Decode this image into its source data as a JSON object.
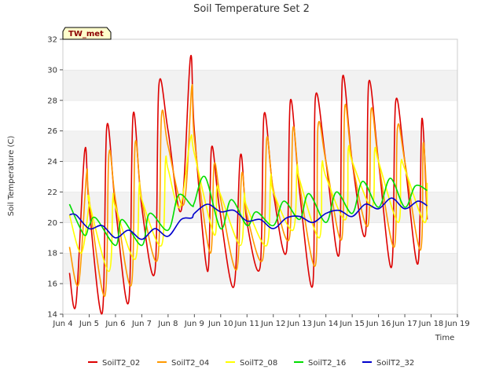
{
  "chart_data": {
    "type": "line",
    "title": "Soil Temperature Set 2",
    "xlabel": "Time",
    "ylabel": "Soil Temperature (C)",
    "badge": "TW_met",
    "x_ticks": [
      "Jun 4",
      "Jun 5",
      "Jun 6",
      "Jun 7",
      "Jun 8",
      "Jun 9",
      "Jun 10",
      "Jun 11",
      "Jun 12",
      "Jun 13",
      "Jun 14",
      "Jun 15",
      "Jun 16",
      "Jun 17",
      "Jun 18",
      "Jun 19"
    ],
    "xlim": [
      4,
      19
    ],
    "ylim": [
      14,
      32
    ],
    "y_ticks": [
      14,
      16,
      18,
      20,
      22,
      24,
      26,
      28,
      30,
      32
    ],
    "grid": "horizontal bands",
    "legend_position": "bottom",
    "series": [
      {
        "name": "SoilT2_02",
        "color": "#dd0000",
        "x": [
          4.25,
          4.5,
          4.83,
          5.0,
          5.5,
          5.67,
          6.0,
          6.5,
          6.67,
          7.0,
          7.5,
          7.65,
          8.0,
          8.5,
          8.85,
          9.0,
          9.5,
          9.65,
          9.95,
          10.5,
          10.75,
          11.0,
          11.5,
          11.65,
          12.0,
          12.5,
          12.65,
          13.0,
          13.5,
          13.6,
          14.0,
          14.5,
          14.63,
          15.0,
          15.5,
          15.63,
          16.0,
          16.5,
          16.65,
          17.0,
          17.5,
          17.65,
          17.85
        ],
        "y": [
          16.7,
          14.7,
          24.7,
          21.0,
          14.1,
          26.3,
          21.0,
          14.8,
          27.1,
          21.0,
          16.8,
          29.0,
          26.0,
          20.8,
          30.8,
          26.0,
          16.8,
          24.9,
          21.0,
          15.8,
          24.4,
          20.0,
          17.1,
          27.1,
          22.0,
          18.1,
          28.0,
          22.0,
          15.9,
          28.2,
          24.0,
          17.9,
          29.5,
          24.0,
          19.2,
          29.2,
          24.0,
          17.1,
          27.9,
          24.0,
          17.3,
          26.8,
          20.2
        ]
      },
      {
        "name": "SoilT2_04",
        "color": "#ff9900",
        "x": [
          4.25,
          4.6,
          4.9,
          5.0,
          5.6,
          5.75,
          6.0,
          6.6,
          6.75,
          7.0,
          7.6,
          7.75,
          8.0,
          8.6,
          8.9,
          9.0,
          9.6,
          9.75,
          10.0,
          10.6,
          10.8,
          11.0,
          11.6,
          11.75,
          12.0,
          12.6,
          12.75,
          13.0,
          13.6,
          13.7,
          14.0,
          14.6,
          14.72,
          15.0,
          15.6,
          15.72,
          16.0,
          16.6,
          16.72,
          17.0,
          17.6,
          17.7,
          17.85
        ],
        "y": [
          18.4,
          16.0,
          23.2,
          21.5,
          15.2,
          24.5,
          21.5,
          15.9,
          25.2,
          21.5,
          17.6,
          27.0,
          25.0,
          21.2,
          28.9,
          25.5,
          18.0,
          23.8,
          21.5,
          16.9,
          23.2,
          20.5,
          17.6,
          25.5,
          22.2,
          18.9,
          26.2,
          22.5,
          17.2,
          26.3,
          24.0,
          18.9,
          27.6,
          24.0,
          19.8,
          27.4,
          24.0,
          18.4,
          26.2,
          24.0,
          18.2,
          25.2,
          21.0
        ]
      },
      {
        "name": "SoilT2_08",
        "color": "#ffff00",
        "x": [
          4.25,
          4.7,
          5.0,
          5.0,
          5.75,
          5.9,
          6.0,
          6.75,
          6.9,
          7.0,
          7.75,
          7.9,
          8.0,
          8.45,
          8.85,
          9.0,
          9.75,
          9.85,
          10.0,
          10.75,
          10.9,
          11.0,
          11.75,
          11.9,
          12.0,
          12.75,
          12.9,
          13.0,
          13.75,
          13.85,
          14.0,
          14.75,
          14.85,
          15.0,
          15.75,
          15.85,
          16.0,
          16.75,
          16.85,
          17.0,
          17.75,
          17.85
        ],
        "y": [
          20.5,
          18.0,
          21.3,
          21.3,
          16.8,
          21.6,
          21.0,
          17.6,
          22.4,
          21.5,
          18.5,
          24.0,
          23.5,
          21.0,
          25.5,
          24.5,
          19.2,
          22.2,
          21.8,
          18.5,
          21.8,
          21.0,
          18.5,
          23.0,
          22.0,
          19.5,
          23.6,
          22.8,
          19.0,
          23.8,
          23.0,
          20.2,
          24.8,
          24.0,
          21.0,
          24.7,
          24.0,
          20.0,
          23.8,
          23.5,
          20.0,
          22.6
        ]
      },
      {
        "name": "SoilT2_16",
        "color": "#00dd00",
        "x": [
          4.25,
          4.8,
          5.0,
          5.25,
          6.0,
          6.25,
          7.0,
          7.3,
          8.0,
          8.4,
          8.9,
          9.0,
          9.4,
          10.0,
          10.4,
          11.0,
          11.35,
          12.0,
          12.4,
          13.0,
          13.35,
          14.0,
          14.4,
          15.0,
          15.4,
          16.0,
          16.45,
          17.0,
          17.4,
          17.85
        ],
        "y": [
          21.2,
          19.2,
          19.8,
          20.3,
          18.5,
          20.2,
          18.5,
          20.6,
          19.5,
          21.8,
          21.1,
          21.3,
          23.0,
          19.6,
          21.5,
          19.8,
          20.7,
          19.8,
          21.4,
          20.2,
          21.9,
          20.0,
          22.0,
          20.6,
          22.7,
          21.0,
          22.9,
          21.0,
          22.4,
          22.1
        ]
      },
      {
        "name": "SoilT2_32",
        "color": "#0000cc",
        "x": [
          4.25,
          4.5,
          5.0,
          5.5,
          6.0,
          6.5,
          7.0,
          7.5,
          8.0,
          8.5,
          8.9,
          9.0,
          9.5,
          10.0,
          10.5,
          11.0,
          11.5,
          12.0,
          12.5,
          13.0,
          13.5,
          14.0,
          14.5,
          15.0,
          15.5,
          16.0,
          16.5,
          17.0,
          17.5,
          17.85
        ],
        "y": [
          20.5,
          20.5,
          19.6,
          19.8,
          19.0,
          19.5,
          18.9,
          19.6,
          19.1,
          20.2,
          20.3,
          20.6,
          21.2,
          20.7,
          20.8,
          20.1,
          20.2,
          19.6,
          20.3,
          20.4,
          20.0,
          20.6,
          20.8,
          20.4,
          21.2,
          20.9,
          21.6,
          20.9,
          21.4,
          21.1
        ]
      }
    ]
  }
}
